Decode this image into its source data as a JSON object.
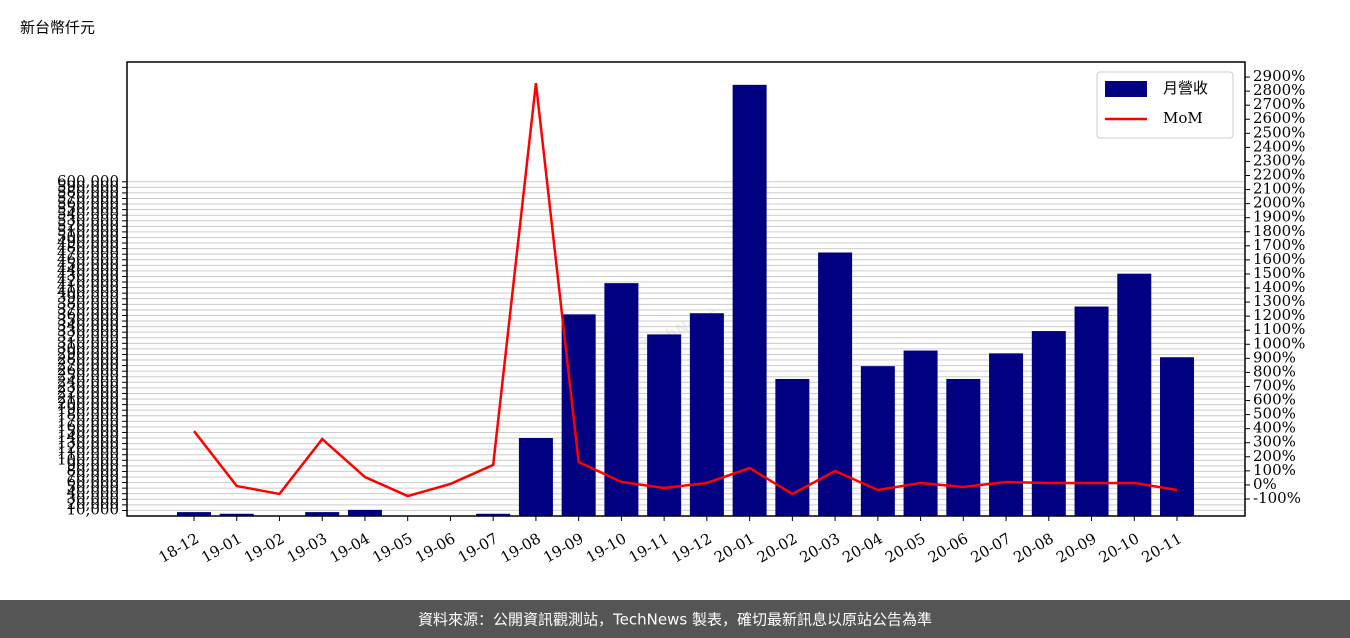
{
  "chart_data": {
    "type": "bar_line",
    "unit_label": "新台幣仟元",
    "watermark": "TechNews",
    "footer": "資料來源：公開資訊觀測站，TechNews 製表，確切最新訊息以原站公告為準",
    "categories": [
      "18-12",
      "19-01",
      "19-02",
      "19-03",
      "19-04",
      "19-05",
      "19-06",
      "19-07",
      "19-08",
      "19-09",
      "19-10",
      "19-11",
      "19-12",
      "20-01",
      "20-02",
      "20-03",
      "20-04",
      "20-05",
      "20-06",
      "20-07",
      "20-08",
      "20-09",
      "20-10",
      "20-11"
    ],
    "series": [
      {
        "name": "月營收",
        "color": "#000080",
        "kind": "bar",
        "values": [
          7000,
          4000,
          500,
          7000,
          11000,
          500,
          300,
          4000,
          140000,
          362000,
          418000,
          326000,
          364000,
          774000,
          246000,
          473000,
          269000,
          297000,
          246000,
          292000,
          332000,
          376000,
          435000,
          285000
        ]
      },
      {
        "name": "MoM",
        "color": "#ff0000",
        "kind": "line",
        "axis": "y2",
        "values": [
          383,
          -8,
          -64,
          326,
          56,
          -79,
          7,
          142,
          2857,
          163,
          21,
          -22,
          14,
          120,
          -64,
          99,
          -36,
          14,
          -15,
          21,
          14,
          14,
          14,
          -36
        ]
      }
    ],
    "ylim": [
      0,
      815000
    ],
    "yticks": [
      {
        "value": 10000,
        "label": "10,000"
      },
      {
        "value": 20000,
        "label": "20,000"
      },
      {
        "value": 30000,
        "label": "30,000"
      },
      {
        "value": 40000,
        "label": "40,000"
      },
      {
        "value": 50000,
        "label": "50,000"
      },
      {
        "value": 60000,
        "label": "60,000"
      },
      {
        "value": 70000,
        "label": "70,000"
      },
      {
        "value": 80000,
        "label": "80,000"
      },
      {
        "value": 90000,
        "label": "90,000"
      },
      {
        "value": 100000,
        "label": "100,000"
      },
      {
        "value": 110000,
        "label": "110,000"
      },
      {
        "value": 120000,
        "label": "120,000"
      },
      {
        "value": 130000,
        "label": "130,000"
      },
      {
        "value": 140000,
        "label": "140,000"
      },
      {
        "value": 150000,
        "label": "150,000"
      },
      {
        "value": 160000,
        "label": "160,000"
      },
      {
        "value": 170000,
        "label": "170,000"
      },
      {
        "value": 180000,
        "label": "180,000"
      },
      {
        "value": 190000,
        "label": "190,000"
      },
      {
        "value": 200000,
        "label": "200,000"
      },
      {
        "value": 210000,
        "label": "210,000"
      },
      {
        "value": 220000,
        "label": "220,000"
      },
      {
        "value": 230000,
        "label": "230,000"
      },
      {
        "value": 240000,
        "label": "240,000"
      },
      {
        "value": 250000,
        "label": "250,000"
      },
      {
        "value": 260000,
        "label": "260,000"
      },
      {
        "value": 270000,
        "label": "270,000"
      },
      {
        "value": 280000,
        "label": "280,000"
      },
      {
        "value": 290000,
        "label": "290,000"
      },
      {
        "value": 300000,
        "label": "300,000"
      },
      {
        "value": 310000,
        "label": "310,000"
      },
      {
        "value": 320000,
        "label": "320,000"
      },
      {
        "value": 330000,
        "label": "330,000"
      },
      {
        "value": 340000,
        "label": "340,000"
      },
      {
        "value": 350000,
        "label": "350,000"
      },
      {
        "value": 360000,
        "label": "360,000"
      },
      {
        "value": 370000,
        "label": "370,000"
      },
      {
        "value": 380000,
        "label": "380,000"
      },
      {
        "value": 390000,
        "label": "390,000"
      },
      {
        "value": 400000,
        "label": "400,000"
      },
      {
        "value": 410000,
        "label": "410,000"
      },
      {
        "value": 420000,
        "label": "420,000"
      },
      {
        "value": 430000,
        "label": "430,000"
      },
      {
        "value": 440000,
        "label": "440,000"
      },
      {
        "value": 450000,
        "label": "450,000"
      },
      {
        "value": 460000,
        "label": "460,000"
      },
      {
        "value": 470000,
        "label": "470,000"
      },
      {
        "value": 480000,
        "label": "480,000"
      },
      {
        "value": 490000,
        "label": "490,000"
      },
      {
        "value": 500000,
        "label": "500,000"
      },
      {
        "value": 510000,
        "label": "510,000"
      },
      {
        "value": 520000,
        "label": "520,000"
      },
      {
        "value": 530000,
        "label": "530,000"
      },
      {
        "value": 540000,
        "label": "540,000"
      },
      {
        "value": 550000,
        "label": "550,000"
      },
      {
        "value": 560000,
        "label": "560,000"
      },
      {
        "value": 570000,
        "label": "570,000"
      },
      {
        "value": 580000,
        "label": "580,000"
      },
      {
        "value": 590000,
        "label": "590,000"
      },
      {
        "value": 600000,
        "label": "600,000"
      }
    ],
    "y2lim": [
      -221,
      3007
    ],
    "y2ticks": [
      {
        "value": -100,
        "label": "-100%"
      },
      {
        "value": 0,
        "label": "0%"
      },
      {
        "value": 100,
        "label": "100%"
      },
      {
        "value": 200,
        "label": "200%"
      },
      {
        "value": 300,
        "label": "300%"
      },
      {
        "value": 400,
        "label": "400%"
      },
      {
        "value": 500,
        "label": "500%"
      },
      {
        "value": 600,
        "label": "600%"
      },
      {
        "value": 700,
        "label": "700%"
      },
      {
        "value": 800,
        "label": "800%"
      },
      {
        "value": 900,
        "label": "900%"
      },
      {
        "value": 1000,
        "label": "1000%"
      },
      {
        "value": 1100,
        "label": "1100%"
      },
      {
        "value": 1200,
        "label": "1200%"
      },
      {
        "value": 1300,
        "label": "1300%"
      },
      {
        "value": 1400,
        "label": "1400%"
      },
      {
        "value": 1500,
        "label": "1500%"
      },
      {
        "value": 1600,
        "label": "1600%"
      },
      {
        "value": 1700,
        "label": "1700%"
      },
      {
        "value": 1800,
        "label": "1800%"
      },
      {
        "value": 1900,
        "label": "1900%"
      },
      {
        "value": 2000,
        "label": "2000%"
      },
      {
        "value": 2100,
        "label": "2100%"
      },
      {
        "value": 2200,
        "label": "2200%"
      },
      {
        "value": 2300,
        "label": "2300%"
      },
      {
        "value": 2400,
        "label": "2400%"
      },
      {
        "value": 2500,
        "label": "2500%"
      },
      {
        "value": 2600,
        "label": "2600%"
      },
      {
        "value": 2700,
        "label": "2700%"
      },
      {
        "value": 2800,
        "label": "2800%"
      },
      {
        "value": 2900,
        "label": "2900%"
      }
    ],
    "grid": true,
    "legend": "upper right"
  }
}
